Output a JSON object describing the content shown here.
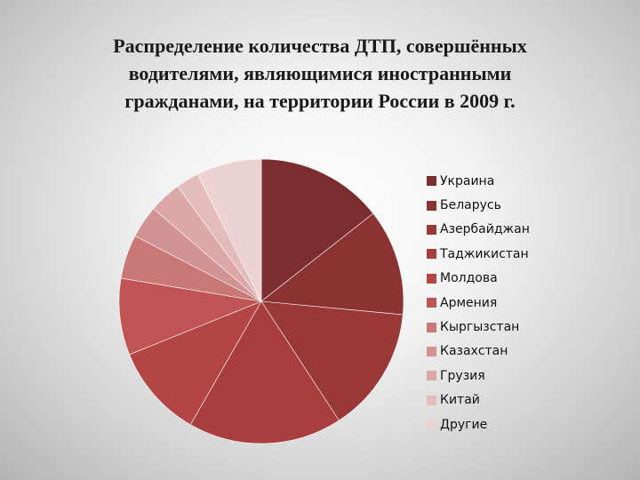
{
  "title_lines": [
    "Распределение количества ДТП, совершённых",
    "водителями, являющимися иностранными",
    "гражданами, на территории России в 2009 г."
  ],
  "chart_data": {
    "type": "pie",
    "title": "Распределение количества ДТП, совершённых водителями, являющимися иностранными гражданами, на территории России в 2009 г.",
    "legend_position": "right",
    "start_angle_deg": 0,
    "direction": "clockwise",
    "categories": [
      "Украина",
      "Беларусь",
      "Азербайджан",
      "Таджикистан",
      "Молдова",
      "Армения",
      "Кыргызстан",
      "Казахстан",
      "Грузия",
      "Китай",
      "Другие"
    ],
    "values": [
      14.4,
      12.1,
      14.3,
      17.5,
      10.6,
      8.7,
      5.0,
      3.7,
      3.7,
      2.6,
      7.4
    ],
    "colors": [
      "#7c2e2e",
      "#8b3333",
      "#9a3838",
      "#a83e3e",
      "#b44545",
      "#c05353",
      "#c97777",
      "#d29393",
      "#dba7a7",
      "#e3bbbb",
      "#ecd2d2"
    ]
  }
}
